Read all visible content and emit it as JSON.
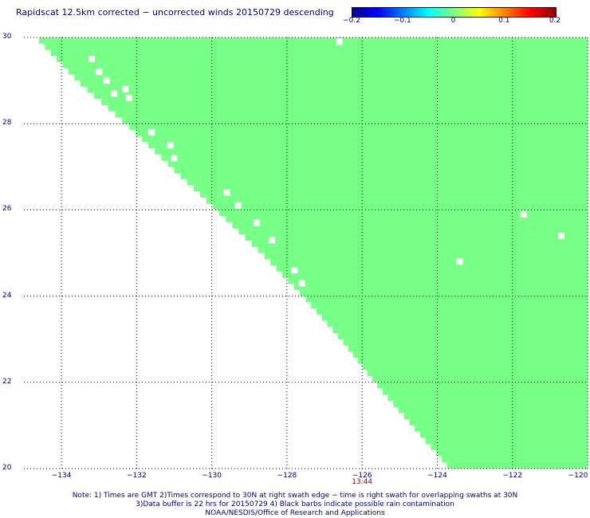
{
  "title": "Rapidscat 12.5km corrected − uncorrected winds 20150729 descending",
  "colorbar": {
    "colors": [
      "#00008b",
      "#0000ff",
      "#0080ff",
      "#00ffff",
      "#80ff80",
      "#ffff00",
      "#ff8000",
      "#ff0000",
      "#8b0000"
    ],
    "ticks": [
      "−0.2",
      "−0.1",
      "0",
      "0.1",
      "0.2"
    ],
    "range": [
      -0.2,
      0.2
    ]
  },
  "map": {
    "lon_range": [
      -135,
      -120
    ],
    "lat_range": [
      20,
      30
    ],
    "lon_ticks": [
      "−134",
      "−132",
      "−130",
      "−128",
      "−126",
      "−124",
      "−122",
      "−120"
    ],
    "lon_tick_values": [
      -134,
      -132,
      -130,
      -128,
      -126,
      -124,
      -122,
      -120
    ],
    "lat_ticks": [
      "30",
      "28",
      "26",
      "24",
      "22",
      "20"
    ],
    "lat_tick_values": [
      30,
      28,
      26,
      24,
      22,
      20
    ],
    "swath_color": "#77ff88",
    "swath_edge": [
      [
        30,
        -134.6
      ],
      [
        29,
        -133.5
      ],
      [
        28,
        -132.2
      ],
      [
        27,
        -131.0
      ],
      [
        26,
        -129.8
      ],
      [
        25,
        -128.6
      ],
      [
        24,
        -127.5
      ],
      [
        23,
        -126.5
      ],
      [
        22,
        -125.6
      ],
      [
        21,
        -124.6
      ],
      [
        20,
        -123.6
      ]
    ],
    "missing_cells_lonlat": [
      [
        -133.2,
        29.5
      ],
      [
        -133.0,
        29.2
      ],
      [
        -132.8,
        29.0
      ],
      [
        -132.6,
        28.7
      ],
      [
        -132.2,
        28.6
      ],
      [
        -132.3,
        28.8
      ],
      [
        -131.6,
        27.8
      ],
      [
        -131.1,
        27.5
      ],
      [
        -131.0,
        27.2
      ],
      [
        -129.6,
        26.4
      ],
      [
        -129.3,
        26.1
      ],
      [
        -128.8,
        25.7
      ],
      [
        -128.4,
        25.3
      ],
      [
        -127.8,
        24.6
      ],
      [
        -127.6,
        24.3
      ],
      [
        -126.6,
        29.9
      ],
      [
        -123.4,
        24.8
      ],
      [
        -121.7,
        25.9
      ],
      [
        -120.7,
        25.4
      ]
    ],
    "grid_style": "dotted"
  },
  "time_label": {
    "text": "13:44",
    "lon": -126
  },
  "footer": {
    "line1": "Note: 1) Times are GMT 2)Times correspond to 30N at right swath edge − time is right swath for overlapping swaths at 30N",
    "line2": "3)Data buffer is 22 hrs for 20150729 4) Black barbs indicate possible rain contamination",
    "line3": "NOAA/NESDIS/Office of Research and Applications"
  }
}
